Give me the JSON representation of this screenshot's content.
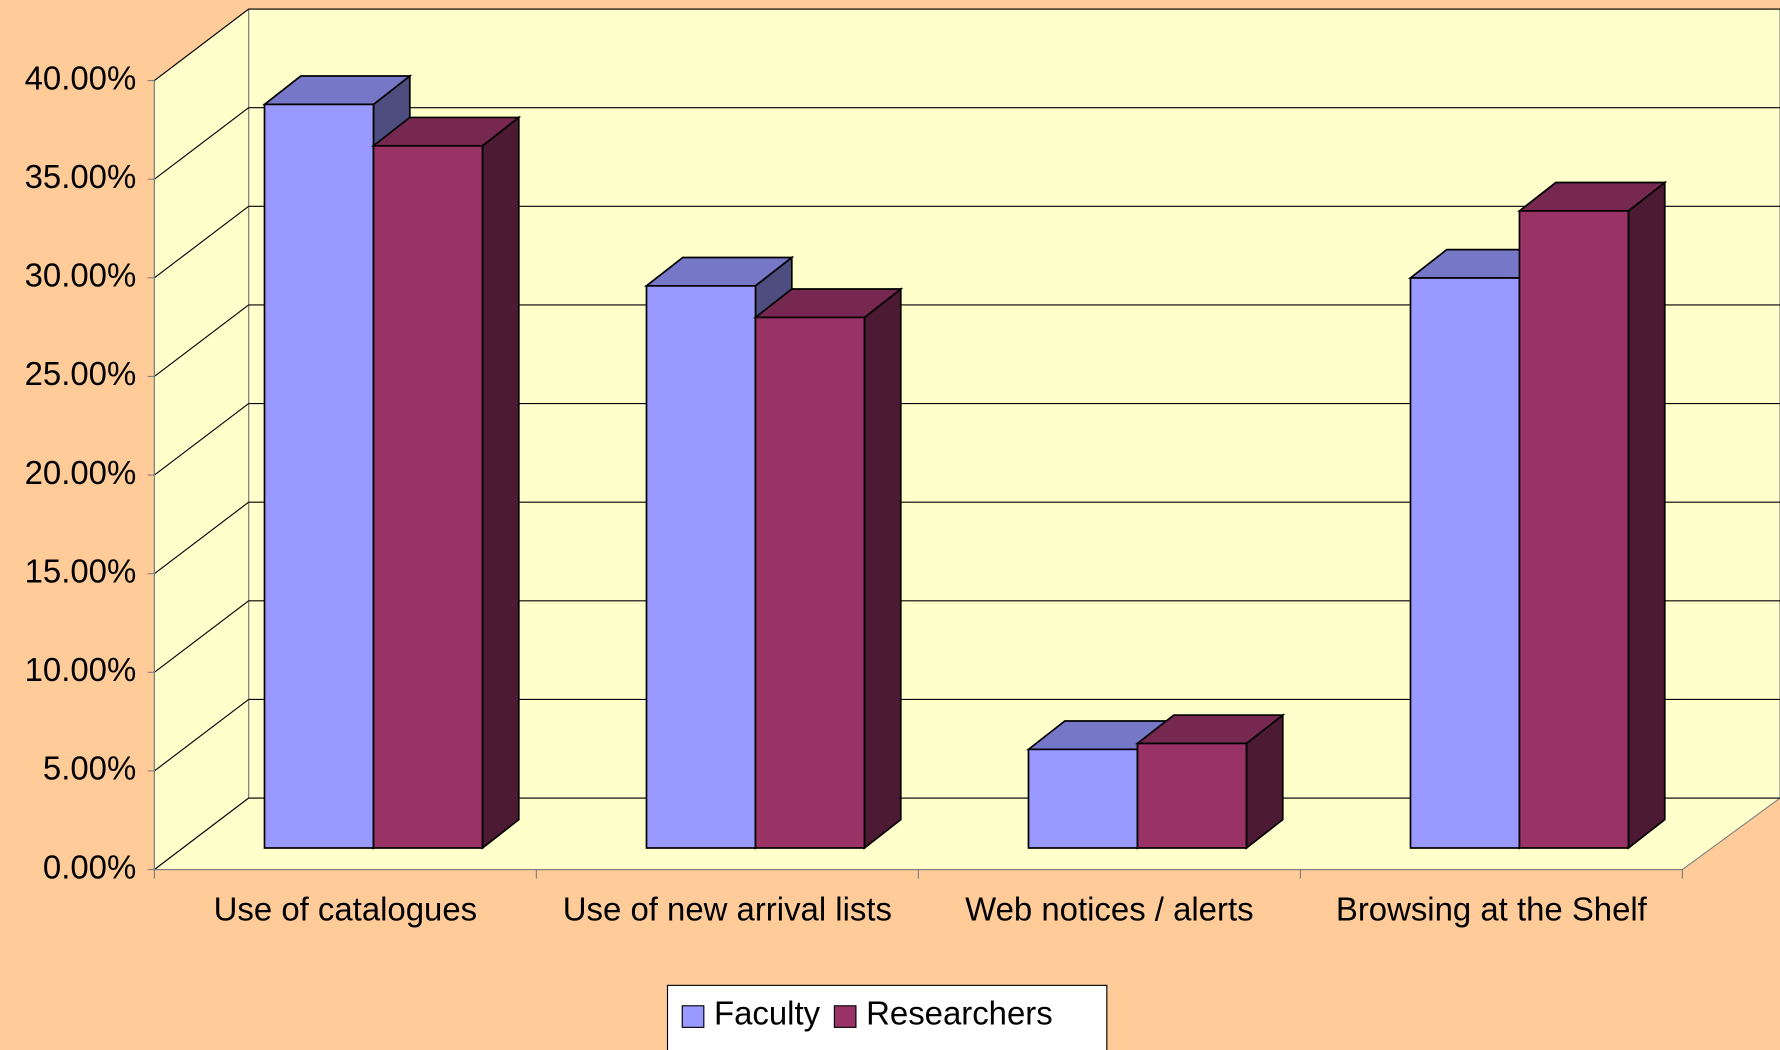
{
  "chart_data": {
    "type": "bar3d",
    "categories": [
      "Use of catalogues",
      "Use of new arrival lists",
      "Web notices / alerts",
      "Browsing at the Shelf"
    ],
    "series": [
      {
        "name": "Faculty",
        "color": "#9999ff",
        "values": [
          37.7,
          28.5,
          5.0,
          28.9
        ]
      },
      {
        "name": "Researchers",
        "color": "#993366",
        "values": [
          35.6,
          26.9,
          5.3,
          32.3
        ]
      }
    ],
    "ylim": [
      0,
      40
    ],
    "yticks": [
      {
        "value": 0,
        "label": "0.00%"
      },
      {
        "value": 5,
        "label": "5.00%"
      },
      {
        "value": 10,
        "label": "10.00%"
      },
      {
        "value": 15,
        "label": "15.00%"
      },
      {
        "value": 20,
        "label": "20.00%"
      },
      {
        "value": 25,
        "label": "25.00%"
      },
      {
        "value": 30,
        "label": "30.00%"
      },
      {
        "value": 35,
        "label": "35.00%"
      },
      {
        "value": 40,
        "label": "40.00%"
      }
    ],
    "grid": true,
    "legend": "bottom"
  }
}
